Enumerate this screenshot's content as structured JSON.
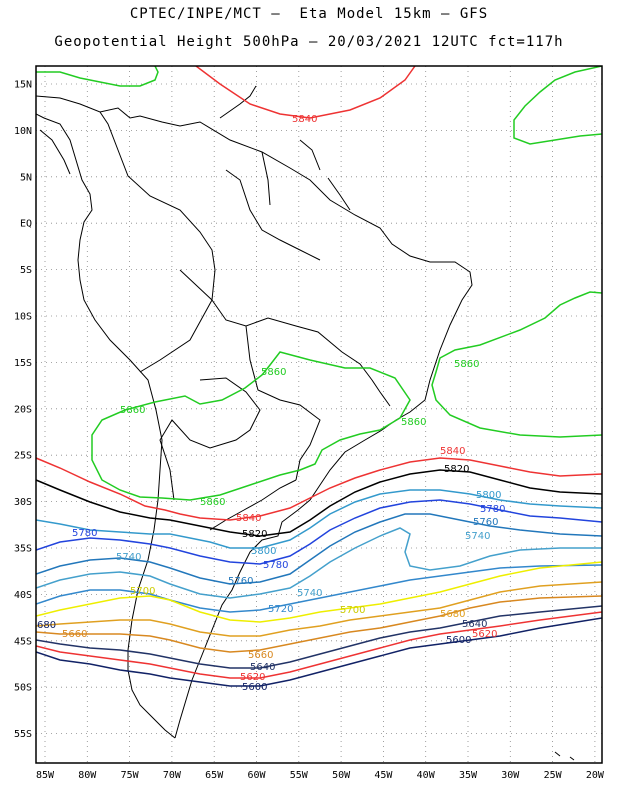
{
  "header": {
    "line1": "CPTEC/INPE/MCT –  Eta Model 15km – GFS",
    "line2": "Geopotential Height 500hPa – 20/03/2021 12UTC fct=117h"
  },
  "axes": {
    "lat_labels": [
      "15N",
      "10N",
      "5N",
      "EQ",
      "5S",
      "10S",
      "15S",
      "20S",
      "25S",
      "30S",
      "35S",
      "40S",
      "45S",
      "50S",
      "55S"
    ],
    "lon_labels": [
      "85W",
      "80W",
      "75W",
      "70W",
      "65W",
      "60W",
      "55W",
      "50W",
      "45W",
      "40W",
      "35W",
      "30W",
      "25W",
      "20W"
    ],
    "grid": "dotted"
  },
  "colors": {
    "5860": "#22cc22",
    "5840": "#ee3333",
    "5820": "#000000",
    "5800": "#3399cc",
    "5780": "#2244dd",
    "5760": "#2277bb",
    "5740": "#44a0cc",
    "5720": "#3388cc",
    "5700": "#eeee00",
    "5680": "#e0a020",
    "5660": "#d88820",
    "5640": "#223366",
    "5620": "#ee3333",
    "5600": "#112266"
  },
  "contour_labels": {
    "l5840a": "5840",
    "l5860a": "5860",
    "l5860b": "5860",
    "l5860c": "5860",
    "l5860d": "5860",
    "l5860e": "5860",
    "l5840b": "5840",
    "l5840c": "5840",
    "l5820a": "5820",
    "l5820b": "5820",
    "l5800a": "5800",
    "l5800b": "5800",
    "l5780a": "5780",
    "l5780b": "5780",
    "l5780c": "5780",
    "l5760a": "5760",
    "l5740a": "5740",
    "l5740b": "5740",
    "l5740c": "5740",
    "l5760b": "5760",
    "l5720a": "5720",
    "l5700a": "5700",
    "l5700b": "5700",
    "l5680a": "5680",
    "l5660a": "5660",
    "l5660b": "5660",
    "l5640a": "5640",
    "l5640b": "5640",
    "l5620a": "5620",
    "l5620b": "5620",
    "l5600a": "5600",
    "l5600b": "5600",
    "l680": "680"
  }
}
